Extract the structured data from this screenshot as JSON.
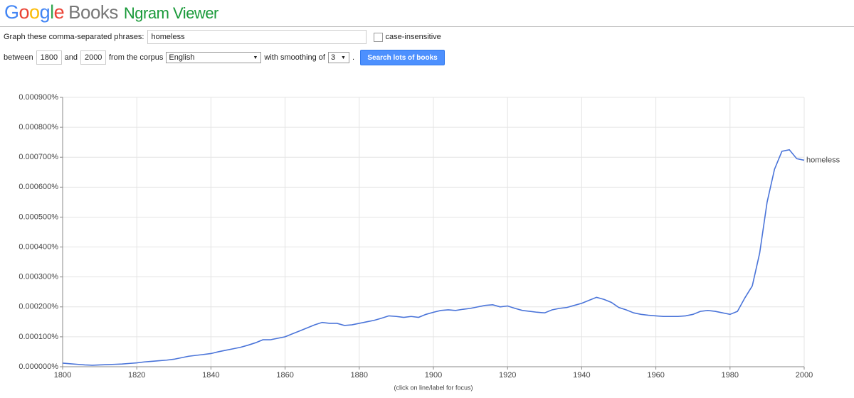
{
  "header": {
    "logo_letters": [
      "G",
      "o",
      "o",
      "g",
      "l",
      "e"
    ],
    "brand": "Books",
    "product": "Ngram Viewer"
  },
  "form": {
    "phrases_label": "Graph these comma-separated phrases:",
    "phrases": "homeless",
    "case_insensitive": "case-insensitive",
    "between": "between",
    "start_year": "1800",
    "and": "and",
    "end_year": "2000",
    "corpus_label": "from the corpus",
    "corpus": "English",
    "smoothing_label": "with smoothing of",
    "smoothing": "3",
    "period": ".",
    "button": "Search lots of books"
  },
  "footer_note": "(click on line/label for focus)",
  "chart_data": {
    "type": "line",
    "x": [
      1800,
      1802,
      1804,
      1806,
      1808,
      1810,
      1812,
      1814,
      1816,
      1818,
      1820,
      1822,
      1824,
      1826,
      1828,
      1830,
      1832,
      1834,
      1836,
      1838,
      1840,
      1842,
      1844,
      1846,
      1848,
      1850,
      1852,
      1854,
      1856,
      1858,
      1860,
      1862,
      1864,
      1866,
      1868,
      1870,
      1872,
      1874,
      1876,
      1878,
      1880,
      1882,
      1884,
      1886,
      1888,
      1890,
      1892,
      1894,
      1896,
      1898,
      1900,
      1902,
      1904,
      1906,
      1908,
      1910,
      1912,
      1914,
      1916,
      1918,
      1920,
      1922,
      1924,
      1926,
      1928,
      1930,
      1932,
      1934,
      1936,
      1938,
      1940,
      1942,
      1944,
      1946,
      1948,
      1950,
      1952,
      1954,
      1956,
      1958,
      1960,
      1962,
      1964,
      1966,
      1968,
      1970,
      1972,
      1974,
      1976,
      1978,
      1980,
      1982,
      1984,
      1986,
      1988,
      1990,
      1992,
      1994,
      1996,
      1998,
      2000
    ],
    "series": [
      {
        "name": "homeless",
        "color": "#4a74d9",
        "values": [
          1.2e-05,
          1e-05,
          8e-06,
          6e-06,
          5e-06,
          6e-06,
          7e-06,
          8e-06,
          9e-06,
          1.1e-05,
          1.3e-05,
          1.6e-05,
          1.8e-05,
          2e-05,
          2.2e-05,
          2.5e-05,
          3e-05,
          3.5e-05,
          3.8e-05,
          4.1e-05,
          4.4e-05,
          5e-05,
          5.5e-05,
          6e-05,
          6.5e-05,
          7.2e-05,
          8e-05,
          9e-05,
          9e-05,
          9.5e-05,
          0.0001,
          0.00011,
          0.00012,
          0.00013,
          0.00014,
          0.000148,
          0.000145,
          0.000145,
          0.000138,
          0.00014,
          0.000145,
          0.00015,
          0.000155,
          0.000162,
          0.00017,
          0.000168,
          0.000165,
          0.000168,
          0.000165,
          0.000175,
          0.000182,
          0.000188,
          0.00019,
          0.000188,
          0.000192,
          0.000195,
          0.0002,
          0.000205,
          0.000207,
          0.0002,
          0.000203,
          0.000195,
          0.000188,
          0.000185,
          0.000182,
          0.00018,
          0.00019,
          0.000195,
          0.000198,
          0.000205,
          0.000212,
          0.000222,
          0.000232,
          0.000225,
          0.000215,
          0.000198,
          0.00019,
          0.00018,
          0.000175,
          0.000172,
          0.00017,
          0.000168,
          0.000168,
          0.000168,
          0.00017,
          0.000175,
          0.000185,
          0.000188,
          0.000185,
          0.00018,
          0.000175,
          0.000185,
          0.00023,
          0.00027,
          0.00038,
          0.00055,
          0.00066,
          0.00072,
          0.000725,
          0.000695,
          0.00069
        ]
      }
    ],
    "xlim": [
      1800,
      2000
    ],
    "xticks": [
      1800,
      1820,
      1840,
      1860,
      1880,
      1900,
      1920,
      1940,
      1960,
      1980,
      2000
    ],
    "ylim": [
      0,
      0.0009
    ],
    "yticks": [
      {
        "value": 0,
        "label": "0.000000%"
      },
      {
        "value": 0.0001,
        "label": "0.000100%"
      },
      {
        "value": 0.0002,
        "label": "0.000200%"
      },
      {
        "value": 0.0003,
        "label": "0.000300%"
      },
      {
        "value": 0.0004,
        "label": "0.000400%"
      },
      {
        "value": 0.0005,
        "label": "0.000500%"
      },
      {
        "value": 0.0006,
        "label": "0.000600%"
      },
      {
        "value": 0.0007,
        "label": "0.000700%"
      },
      {
        "value": 0.0008,
        "label": "0.000800%"
      },
      {
        "value": 0.0009,
        "label": "0.000900%"
      }
    ],
    "grid": true
  }
}
